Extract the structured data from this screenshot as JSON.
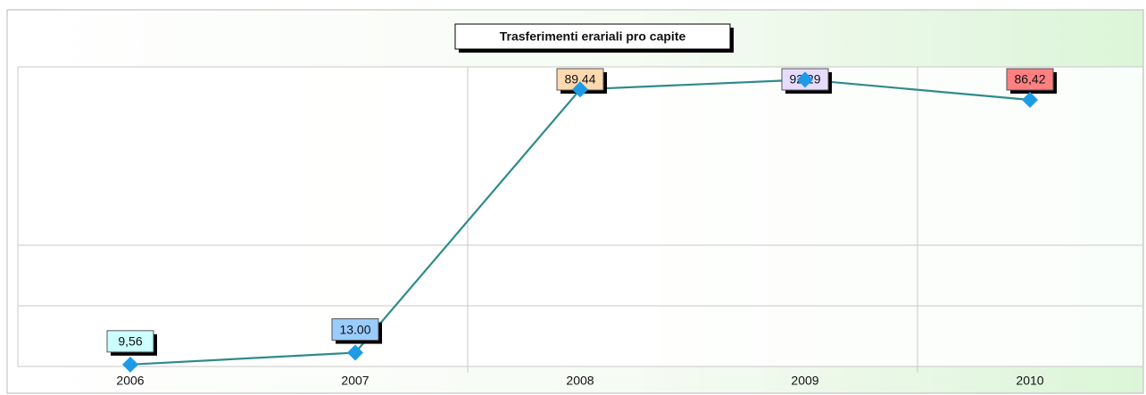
{
  "chart_data": {
    "type": "line",
    "title": "Trasferimenti erariali pro capite",
    "categories": [
      "2006",
      "2007",
      "2008",
      "2009",
      "2010"
    ],
    "values": [
      9.56,
      13.0,
      89.44,
      92.29,
      86.42
    ],
    "value_labels": [
      "9,56",
      "13.00",
      "89,44",
      "92,29",
      "86,42"
    ],
    "color": "#2e8b8b",
    "marker_color": "#1e9be6",
    "label_colors": [
      "#ccffff",
      "#99ccff",
      "#ffd9b0",
      "#e6dcff",
      "#ff8080"
    ],
    "ylim": [
      9,
      96
    ],
    "yticks": [
      9,
      26.6,
      44.2,
      96
    ],
    "grid": true
  }
}
